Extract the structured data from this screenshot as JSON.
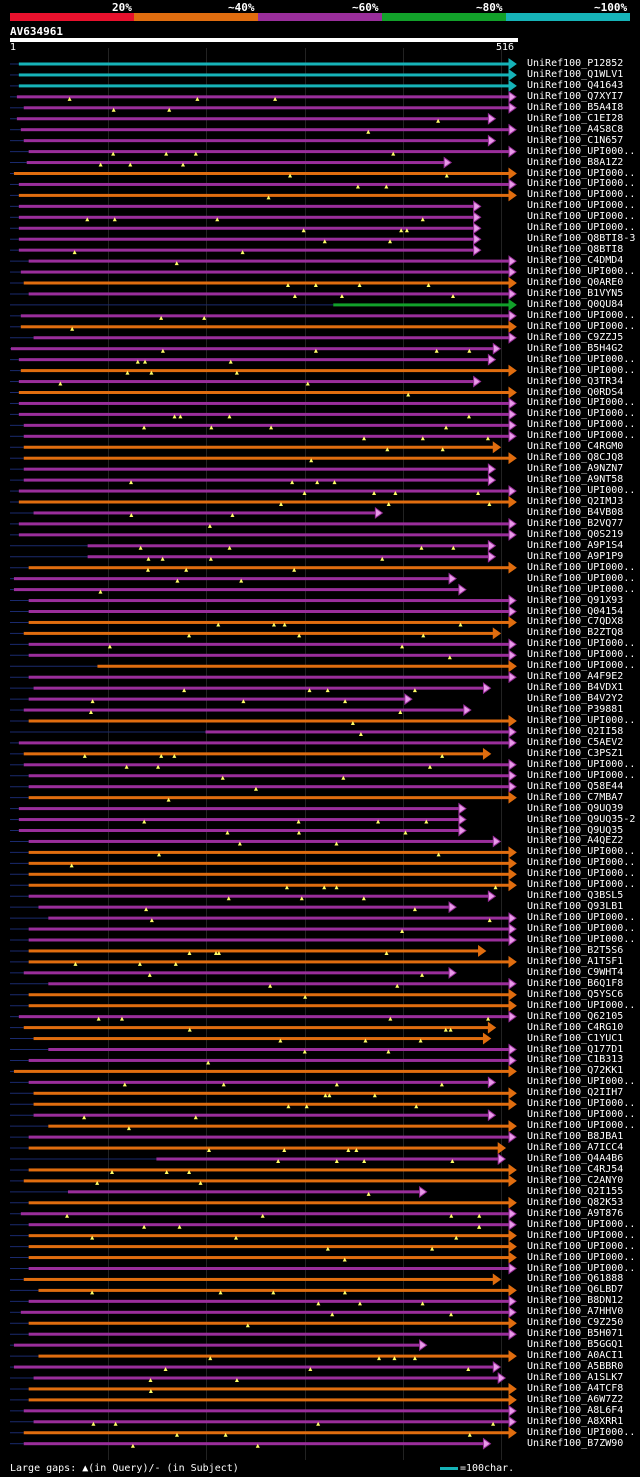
{
  "legend": [
    {
      "label": "20%",
      "color": "#e8112d"
    },
    {
      "label": "~40%",
      "color": "#e06d0f"
    },
    {
      "label": "~60%",
      "color": "#9a2e9b"
    },
    {
      "label": "~80%",
      "color": "#12a12a"
    },
    {
      "label": "~100%",
      "color": "#16b3b8"
    }
  ],
  "query": {
    "name": "AV634961",
    "start": "1",
    "end": "516"
  },
  "colors": {
    "cyan": "#16b3b8",
    "magenta": "#9a2e9b",
    "orange": "#e06d0f",
    "green": "#12a12a",
    "link": "#1a2a6e",
    "pink": "#e89ae8",
    "gap": "#ffff66"
  },
  "hits": [
    {
      "label": "UniRef100_P12852",
      "color": "cyan",
      "start": 10,
      "end": 516
    },
    {
      "label": "UniRef100_Q1WLV1",
      "color": "cyan",
      "start": 10,
      "end": 516
    },
    {
      "label": "UniRef100_Q41643",
      "color": "cyan",
      "start": 10,
      "end": 516
    },
    {
      "label": "UniRef100_Q7XYI7",
      "color": "magenta",
      "start": 8,
      "end": 516
    },
    {
      "label": "UniRef100_B5A4I8",
      "color": "magenta",
      "start": 15,
      "end": 516
    },
    {
      "label": "UniRef100_C1EI28",
      "color": "magenta",
      "start": 8,
      "end": 495
    },
    {
      "label": "UniRef100_A4S8C8",
      "color": "magenta",
      "start": 12,
      "end": 516
    },
    {
      "label": "UniRef100_C1N657",
      "color": "magenta",
      "start": 15,
      "end": 495
    },
    {
      "label": "UniRef100_UPI000..",
      "color": "magenta",
      "start": 20,
      "end": 516
    },
    {
      "label": "UniRef100_B8A1Z2",
      "color": "magenta",
      "start": 18,
      "end": 450
    },
    {
      "label": "UniRef100_UPI000..",
      "color": "orange",
      "start": 5,
      "end": 516
    },
    {
      "label": "UniRef100_UPI000..",
      "color": "magenta",
      "start": 10,
      "end": 516
    },
    {
      "label": "UniRef100_UPI000..",
      "color": "orange",
      "start": 10,
      "end": 516
    },
    {
      "label": "UniRef100_UPI000..",
      "color": "magenta",
      "start": 10,
      "end": 480
    },
    {
      "label": "UniRef100_UPI000..",
      "color": "magenta",
      "start": 10,
      "end": 480
    },
    {
      "label": "UniRef100_UPI000..",
      "color": "magenta",
      "start": 10,
      "end": 480
    },
    {
      "label": "UniRef100_Q8BTI8-3",
      "color": "magenta",
      "start": 10,
      "end": 480
    },
    {
      "label": "UniRef100_Q8BTI8",
      "color": "magenta",
      "start": 10,
      "end": 480
    },
    {
      "label": "UniRef100_C4DMD4",
      "color": "magenta",
      "start": 20,
      "end": 516
    },
    {
      "label": "UniRef100_UPI000..",
      "color": "magenta",
      "start": 12,
      "end": 516
    },
    {
      "label": "UniRef100_Q0ARE0",
      "color": "orange",
      "start": 15,
      "end": 516
    },
    {
      "label": "UniRef100_B1VYN5",
      "color": "magenta",
      "start": 20,
      "end": 516
    },
    {
      "label": "UniRef100_Q0QU84",
      "color": "green",
      "start": 330,
      "end": 516
    },
    {
      "label": "UniRef100_UPI000..",
      "color": "magenta",
      "start": 12,
      "end": 516
    },
    {
      "label": "UniRef100_UPI000..",
      "color": "orange",
      "start": 12,
      "end": 516
    },
    {
      "label": "UniRef100_C9ZZJ5",
      "color": "magenta",
      "start": 25,
      "end": 516
    },
    {
      "label": "UniRef100_B5H4G2",
      "color": "magenta",
      "start": 2,
      "end": 500
    },
    {
      "label": "UniRef100_UPI000..",
      "color": "magenta",
      "start": 10,
      "end": 495
    },
    {
      "label": "UniRef100_UPI000..",
      "color": "orange",
      "start": 12,
      "end": 516
    },
    {
      "label": "UniRef100_Q3TR34",
      "color": "magenta",
      "start": 10,
      "end": 480
    },
    {
      "label": "UniRef100_Q0RDS4",
      "color": "orange",
      "start": 10,
      "end": 516
    },
    {
      "label": "UniRef100_UPI000..",
      "color": "magenta",
      "start": 10,
      "end": 516
    },
    {
      "label": "UniRef100_UPI000..",
      "color": "magenta",
      "start": 10,
      "end": 516
    },
    {
      "label": "UniRef100_UPI000..",
      "color": "magenta",
      "start": 15,
      "end": 516
    },
    {
      "label": "UniRef100_UPI000..",
      "color": "magenta",
      "start": 15,
      "end": 516
    },
    {
      "label": "UniRef100_C4RGM0",
      "color": "orange",
      "start": 15,
      "end": 500
    },
    {
      "label": "UniRef100_Q8CJQ8",
      "color": "orange",
      "start": 15,
      "end": 516
    },
    {
      "label": "UniRef100_A9NZN7",
      "color": "magenta",
      "start": 15,
      "end": 495
    },
    {
      "label": "UniRef100_A9NT58",
      "color": "magenta",
      "start": 15,
      "end": 495
    },
    {
      "label": "UniRef100_UPI000..",
      "color": "magenta",
      "start": 10,
      "end": 516
    },
    {
      "label": "UniRef100_Q2IMJ3",
      "color": "orange",
      "start": 10,
      "end": 516
    },
    {
      "label": "UniRef100_B4VB08",
      "color": "magenta",
      "start": 25,
      "end": 380
    },
    {
      "label": "UniRef100_B2VQ77",
      "color": "magenta",
      "start": 10,
      "end": 516
    },
    {
      "label": "UniRef100_Q0S219",
      "color": "magenta",
      "start": 10,
      "end": 516
    },
    {
      "label": "UniRef100_A9P1S4",
      "color": "magenta",
      "start": 80,
      "end": 495
    },
    {
      "label": "UniRef100_A9P1P9",
      "color": "magenta",
      "start": 80,
      "end": 495
    },
    {
      "label": "UniRef100_UPI000..",
      "color": "orange",
      "start": 20,
      "end": 516
    },
    {
      "label": "UniRef100_UPI000..",
      "color": "magenta",
      "start": 5,
      "end": 455
    },
    {
      "label": "UniRef100_UPI000..",
      "color": "magenta",
      "start": 5,
      "end": 465
    },
    {
      "label": "UniRef100_Q91X93",
      "color": "magenta",
      "start": 20,
      "end": 516
    },
    {
      "label": "UniRef100_Q04154",
      "color": "magenta",
      "start": 20,
      "end": 516
    },
    {
      "label": "UniRef100_C7QDX8",
      "color": "orange",
      "start": 20,
      "end": 516
    },
    {
      "label": "UniRef100_B2ZTQ8",
      "color": "orange",
      "start": 15,
      "end": 500
    },
    {
      "label": "UniRef100_UPI000..",
      "color": "magenta",
      "start": 20,
      "end": 516
    },
    {
      "label": "UniRef100_UPI000..",
      "color": "magenta",
      "start": 20,
      "end": 516
    },
    {
      "label": "UniRef100_UPI000..",
      "color": "orange",
      "start": 90,
      "end": 516
    },
    {
      "label": "UniRef100_A4F9E2",
      "color": "magenta",
      "start": 20,
      "end": 516
    },
    {
      "label": "UniRef100_B4VDX1",
      "color": "magenta",
      "start": 25,
      "end": 490
    },
    {
      "label": "UniRef100_B4V2Y2",
      "color": "magenta",
      "start": 20,
      "end": 410
    },
    {
      "label": "UniRef100_P39881",
      "color": "magenta",
      "start": 15,
      "end": 470
    },
    {
      "label": "UniRef100_UPI000..",
      "color": "orange",
      "start": 20,
      "end": 516
    },
    {
      "label": "UniRef100_Q2II58",
      "color": "magenta",
      "start": 200,
      "end": 516
    },
    {
      "label": "UniRef100_C5AEV2",
      "color": "magenta",
      "start": 10,
      "end": 516
    },
    {
      "label": "UniRef100_C3PSZ1",
      "color": "orange",
      "start": 15,
      "end": 490
    },
    {
      "label": "UniRef100_UPI000..",
      "color": "magenta",
      "start": 15,
      "end": 516
    },
    {
      "label": "UniRef100_UPI000..",
      "color": "magenta",
      "start": 20,
      "end": 516
    },
    {
      "label": "UniRef100_Q58E44",
      "color": "magenta",
      "start": 20,
      "end": 516
    },
    {
      "label": "UniRef100_C7MBA7",
      "color": "orange",
      "start": 20,
      "end": 516
    },
    {
      "label": "UniRef100_Q9UQ39",
      "color": "magenta",
      "start": 10,
      "end": 465
    },
    {
      "label": "UniRef100_Q9UQ35-2",
      "color": "magenta",
      "start": 10,
      "end": 465
    },
    {
      "label": "UniRef100_Q9UQ35",
      "color": "magenta",
      "start": 10,
      "end": 465
    },
    {
      "label": "UniRef100_A4QEZ2",
      "color": "magenta",
      "start": 20,
      "end": 500
    },
    {
      "label": "UniRef100_UPI000..",
      "color": "orange",
      "start": 20,
      "end": 516
    },
    {
      "label": "UniRef100_UPI000..",
      "color": "orange",
      "start": 20,
      "end": 516
    },
    {
      "label": "UniRef100_UPI000..",
      "color": "orange",
      "start": 20,
      "end": 516
    },
    {
      "label": "UniRef100_UPI000..",
      "color": "orange",
      "start": 20,
      "end": 516
    },
    {
      "label": "UniRef100_Q3BSL5",
      "color": "magenta",
      "start": 20,
      "end": 495
    },
    {
      "label": "UniRef100_Q93LB1",
      "color": "magenta",
      "start": 30,
      "end": 455
    },
    {
      "label": "UniRef100_UPI000..",
      "color": "magenta",
      "start": 40,
      "end": 516
    },
    {
      "label": "UniRef100_UPI000..",
      "color": "magenta",
      "start": 20,
      "end": 516
    },
    {
      "label": "UniRef100_UPI000..",
      "color": "magenta",
      "start": 20,
      "end": 516
    },
    {
      "label": "UniRef100_B2T5S6",
      "color": "orange",
      "start": 20,
      "end": 485
    },
    {
      "label": "UniRef100_A1TSF1",
      "color": "orange",
      "start": 20,
      "end": 516
    },
    {
      "label": "UniRef100_C9WHT4",
      "color": "magenta",
      "start": 15,
      "end": 455
    },
    {
      "label": "UniRef100_B6Q1F8",
      "color": "magenta",
      "start": 40,
      "end": 516
    },
    {
      "label": "UniRef100_Q5YSC6",
      "color": "orange",
      "start": 20,
      "end": 516
    },
    {
      "label": "UniRef100_UPI000..",
      "color": "orange",
      "start": 20,
      "end": 516
    },
    {
      "label": "UniRef100_Q62105",
      "color": "magenta",
      "start": 10,
      "end": 516
    },
    {
      "label": "UniRef100_C4RG10",
      "color": "orange",
      "start": 15,
      "end": 495
    },
    {
      "label": "UniRef100_C1YUC1",
      "color": "orange",
      "start": 25,
      "end": 490
    },
    {
      "label": "UniRef100_Q177D1",
      "color": "magenta",
      "start": 40,
      "end": 516
    },
    {
      "label": "UniRef100_C1B313",
      "color": "magenta",
      "start": 20,
      "end": 516
    },
    {
      "label": "UniRef100_Q72KK1",
      "color": "orange",
      "start": 5,
      "end": 516
    },
    {
      "label": "UniRef100_UPI000..",
      "color": "magenta",
      "start": 20,
      "end": 495
    },
    {
      "label": "UniRef100_Q2IIH7",
      "color": "orange",
      "start": 25,
      "end": 516
    },
    {
      "label": "UniRef100_UPI000..",
      "color": "orange",
      "start": 25,
      "end": 516
    },
    {
      "label": "UniRef100_UPI000..",
      "color": "magenta",
      "start": 25,
      "end": 495
    },
    {
      "label": "UniRef100_UPI000..",
      "color": "orange",
      "start": 40,
      "end": 516
    },
    {
      "label": "UniRef100_B8JBA1",
      "color": "magenta",
      "start": 20,
      "end": 516
    },
    {
      "label": "UniRef100_A7ICC4",
      "color": "orange",
      "start": 20,
      "end": 505
    },
    {
      "label": "UniRef100_Q4A4B6",
      "color": "magenta",
      "start": 150,
      "end": 505
    },
    {
      "label": "UniRef100_C4RJ54",
      "color": "orange",
      "start": 20,
      "end": 516
    },
    {
      "label": "UniRef100_C2ANY0",
      "color": "orange",
      "start": 15,
      "end": 516
    },
    {
      "label": "UniRef100_Q2I155",
      "color": "magenta",
      "start": 60,
      "end": 425
    },
    {
      "label": "UniRef100_Q82K53",
      "color": "orange",
      "start": 20,
      "end": 516
    },
    {
      "label": "UniRef100_A9T876",
      "color": "magenta",
      "start": 12,
      "end": 516
    },
    {
      "label": "UniRef100_UPI000..",
      "color": "magenta",
      "start": 20,
      "end": 516
    },
    {
      "label": "UniRef100_UPI000..",
      "color": "orange",
      "start": 20,
      "end": 516
    },
    {
      "label": "UniRef100_UPI000..",
      "color": "orange",
      "start": 20,
      "end": 516
    },
    {
      "label": "UniRef100_UPI000..",
      "color": "orange",
      "start": 20,
      "end": 516
    },
    {
      "label": "UniRef100_UPI000..",
      "color": "magenta",
      "start": 20,
      "end": 516
    },
    {
      "label": "UniRef100_Q61888",
      "color": "orange",
      "start": 15,
      "end": 500
    },
    {
      "label": "UniRef100_Q6LBD7",
      "color": "orange",
      "start": 30,
      "end": 516
    },
    {
      "label": "UniRef100_B8DN12",
      "color": "magenta",
      "start": 20,
      "end": 516
    },
    {
      "label": "UniRef100_A7HHV0",
      "color": "magenta",
      "start": 12,
      "end": 516
    },
    {
      "label": "UniRef100_C9Z250",
      "color": "orange",
      "start": 20,
      "end": 516
    },
    {
      "label": "UniRef100_B5H071",
      "color": "magenta",
      "start": 20,
      "end": 516
    },
    {
      "label": "UniRef100_B5GGQ1",
      "color": "magenta",
      "start": 5,
      "end": 425
    },
    {
      "label": "UniRef100_A0ACI1",
      "color": "orange",
      "start": 30,
      "end": 516
    },
    {
      "label": "UniRef100_A5BBR0",
      "color": "magenta",
      "start": 5,
      "end": 500
    },
    {
      "label": "UniRef100_A1SLK7",
      "color": "magenta",
      "start": 25,
      "end": 505
    },
    {
      "label": "UniRef100_A4TCF8",
      "color": "orange",
      "start": 20,
      "end": 516
    },
    {
      "label": "UniRef100_A6W7Z2",
      "color": "orange",
      "start": 20,
      "end": 516
    },
    {
      "label": "UniRef100_A8L6F4",
      "color": "magenta",
      "start": 15,
      "end": 516
    },
    {
      "label": "UniRef100_A8XRR1",
      "color": "magenta",
      "start": 25,
      "end": 516
    },
    {
      "label": "UniRef100_UPI000..",
      "color": "orange",
      "start": 15,
      "end": 516
    },
    {
      "label": "UniRef100_B7ZW90",
      "color": "magenta",
      "start": 15,
      "end": 490
    }
  ],
  "footer": {
    "gaps_text": "Large gaps: ▲(in Query)/- (in Subject)",
    "scale_text": "=100char."
  }
}
